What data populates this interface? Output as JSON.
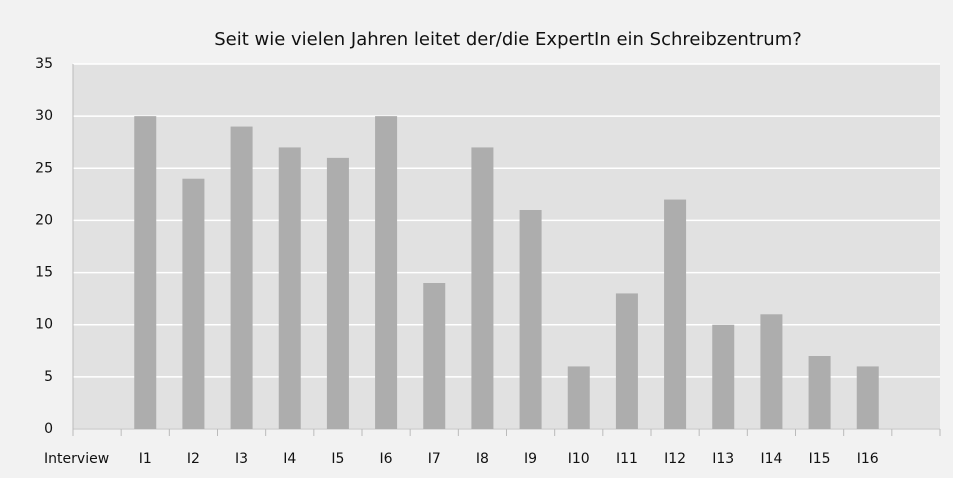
{
  "chart_data": {
    "type": "bar",
    "title": "Seit wie vielen Jahren leitet der/die ExpertIn ein Schreibzentrum?",
    "categories": [
      "Interview",
      "I1",
      "I2",
      "I3",
      "I4",
      "I5",
      "I6",
      "I7",
      "I8",
      "I9",
      "I10",
      "I11",
      "I12",
      "I13",
      "I14",
      "I15",
      "I16",
      null
    ],
    "values": [
      null,
      30,
      24,
      29,
      27,
      26,
      30,
      14,
      27,
      21,
      6,
      13,
      22,
      10,
      11,
      7,
      6,
      null
    ],
    "color": "#adadad",
    "ylim": [
      0,
      35
    ],
    "yticks": [
      0,
      5,
      10,
      15,
      20,
      25,
      30,
      35
    ],
    "grid": true
  }
}
